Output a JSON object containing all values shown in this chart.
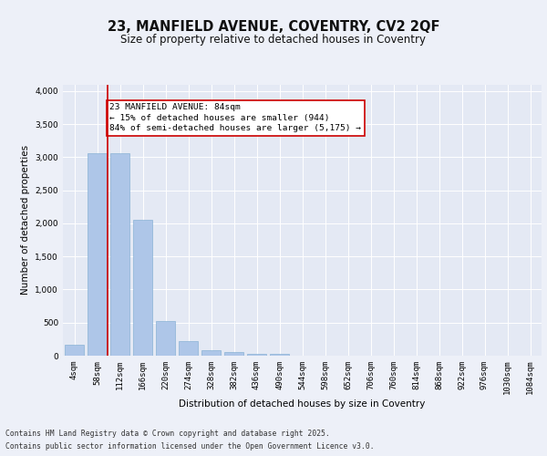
{
  "title_line1": "23, MANFIELD AVENUE, COVENTRY, CV2 2QF",
  "title_line2": "Size of property relative to detached houses in Coventry",
  "xlabel": "Distribution of detached houses by size in Coventry",
  "ylabel": "Number of detached properties",
  "categories": [
    "4sqm",
    "58sqm",
    "112sqm",
    "166sqm",
    "220sqm",
    "274sqm",
    "328sqm",
    "382sqm",
    "436sqm",
    "490sqm",
    "544sqm",
    "598sqm",
    "652sqm",
    "706sqm",
    "760sqm",
    "814sqm",
    "868sqm",
    "922sqm",
    "976sqm",
    "1030sqm",
    "1084sqm"
  ],
  "values": [
    160,
    3060,
    3060,
    2050,
    520,
    220,
    80,
    50,
    30,
    30,
    0,
    0,
    0,
    0,
    0,
    0,
    0,
    0,
    0,
    0,
    0
  ],
  "bar_color": "#aec6e8",
  "bar_edge_color": "#7aaacf",
  "property_line_x": 1.46,
  "property_line_color": "#cc0000",
  "annotation_text": "23 MANFIELD AVENUE: 84sqm\n← 15% of detached houses are smaller (944)\n84% of semi-detached houses are larger (5,175) →",
  "annotation_box_color": "#cc0000",
  "annotation_text_color": "#000000",
  "ylim": [
    0,
    4100
  ],
  "yticks": [
    0,
    500,
    1000,
    1500,
    2000,
    2500,
    3000,
    3500,
    4000
  ],
  "background_color": "#edf0f8",
  "plot_bg_color": "#e4e9f4",
  "grid_color": "#ffffff",
  "footer_line1": "Contains HM Land Registry data © Crown copyright and database right 2025.",
  "footer_line2": "Contains public sector information licensed under the Open Government Licence v3.0.",
  "title_fontsize": 10.5,
  "subtitle_fontsize": 8.5,
  "axis_label_fontsize": 7.5,
  "tick_fontsize": 6.5,
  "footer_fontsize": 5.8,
  "annotation_fontsize": 6.8
}
